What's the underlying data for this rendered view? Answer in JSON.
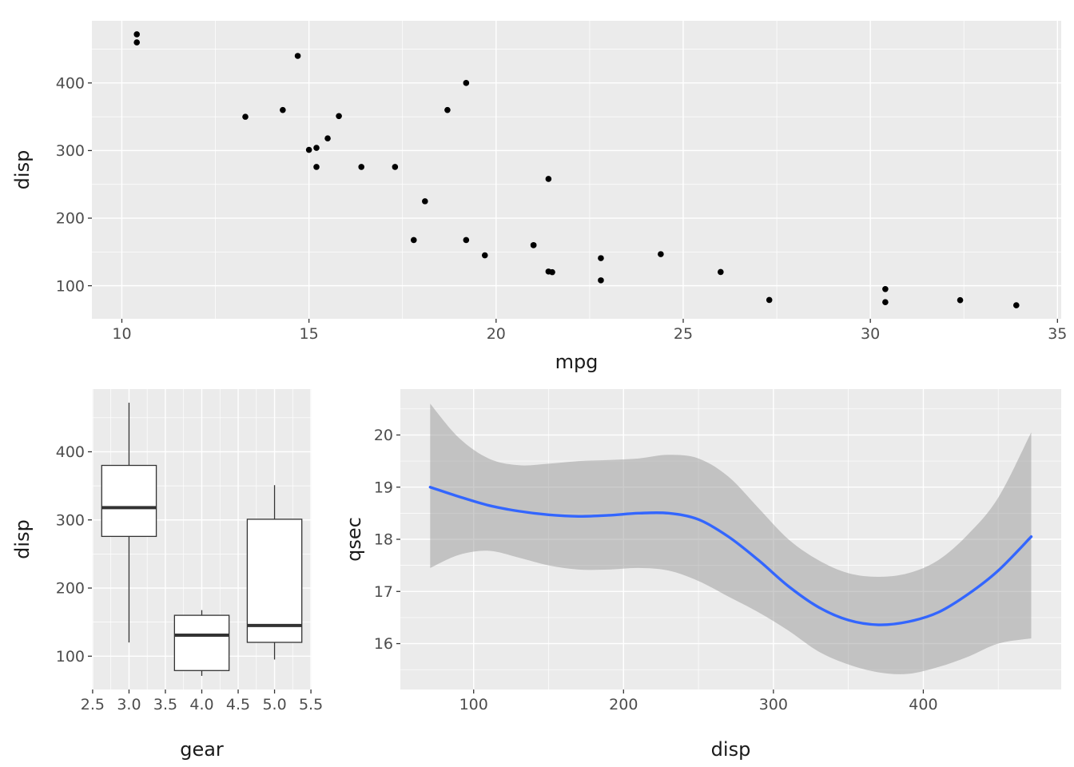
{
  "figure": {
    "background": "#FFFFFF",
    "panel_background": "#EBEBEB",
    "grid_color": "#FFFFFF",
    "axis_text_color": "#4D4D4D",
    "axis_title_color": "#1A1A1A",
    "tick_mark_color": "#333333"
  },
  "chart_data": [
    {
      "id": "scatter-disp-vs-mpg",
      "type": "scatter",
      "title": "",
      "xlabel": "mpg",
      "ylabel": "disp",
      "xlim": [
        9.2,
        35.1
      ],
      "ylim": [
        51.1,
        492.0
      ],
      "x_breaks": [
        10,
        15,
        20,
        25,
        30,
        35
      ],
      "x_labels": [
        "10",
        "15",
        "20",
        "25",
        "30",
        "35"
      ],
      "x_minor": [
        12.5,
        17.5,
        22.5,
        27.5,
        32.5
      ],
      "y_breaks": [
        100,
        200,
        300,
        400
      ],
      "y_labels": [
        "100",
        "200",
        "300",
        "400"
      ],
      "y_minor": [
        50,
        150,
        250,
        350,
        450
      ],
      "point_color": "#000000",
      "grid": true,
      "legend": "none",
      "points": [
        [
          21.0,
          160.0
        ],
        [
          21.0,
          160.0
        ],
        [
          22.8,
          108.0
        ],
        [
          21.4,
          258.0
        ],
        [
          18.7,
          360.0
        ],
        [
          18.1,
          225.0
        ],
        [
          14.3,
          360.0
        ],
        [
          24.4,
          146.7
        ],
        [
          22.8,
          140.8
        ],
        [
          19.2,
          167.6
        ],
        [
          17.8,
          167.6
        ],
        [
          16.4,
          275.8
        ],
        [
          17.3,
          275.8
        ],
        [
          15.2,
          275.8
        ],
        [
          10.4,
          472.0
        ],
        [
          10.4,
          460.0
        ],
        [
          14.7,
          440.0
        ],
        [
          32.4,
          78.7
        ],
        [
          30.4,
          75.7
        ],
        [
          33.9,
          71.1
        ],
        [
          21.5,
          120.1
        ],
        [
          15.5,
          318.0
        ],
        [
          15.2,
          304.0
        ],
        [
          13.3,
          350.0
        ],
        [
          19.2,
          400.0
        ],
        [
          27.3,
          79.0
        ],
        [
          26.0,
          120.3
        ],
        [
          30.4,
          95.1
        ],
        [
          15.8,
          351.0
        ],
        [
          19.7,
          145.0
        ],
        [
          15.0,
          301.0
        ],
        [
          21.4,
          121.0
        ]
      ]
    },
    {
      "id": "boxplot-disp-by-gear",
      "type": "boxplot",
      "title": "",
      "xlabel": "gear",
      "ylabel": "disp",
      "xlim": [
        2.49,
        5.51
      ],
      "ylim": [
        51.1,
        492.0
      ],
      "x_breaks": [
        2.5,
        3.0,
        3.5,
        4.0,
        4.5,
        5.0,
        5.5
      ],
      "x_labels": [
        "2.5",
        "3.0",
        "3.5",
        "4.0",
        "4.5",
        "5.0",
        "5.5"
      ],
      "x_minor": [
        2.75,
        3.25,
        3.75,
        4.25,
        4.75,
        5.25
      ],
      "y_breaks": [
        100,
        200,
        300,
        400
      ],
      "y_labels": [
        "100",
        "200",
        "300",
        "400"
      ],
      "y_minor": [
        50,
        150,
        250,
        350,
        450
      ],
      "box_fill": "#FFFFFF",
      "box_stroke": "#333333",
      "box_width": 0.75,
      "grid": true,
      "legend": "none",
      "boxes": [
        {
          "x": 3,
          "min": 120.1,
          "q1": 275.8,
          "median": 318.0,
          "q3": 380.0,
          "max": 472.0
        },
        {
          "x": 4,
          "min": 71.1,
          "q1": 78.9,
          "median": 130.9,
          "q3": 160.0,
          "max": 167.6
        },
        {
          "x": 5,
          "min": 95.1,
          "q1": 120.3,
          "median": 145.0,
          "q3": 301.0,
          "max": 351.0
        }
      ]
    },
    {
      "id": "smooth-qsec-vs-disp",
      "type": "smooth",
      "title": "",
      "xlabel": "disp",
      "ylabel": "qsec",
      "xlim": [
        51.1,
        492.0
      ],
      "ylim": [
        15.12,
        20.88
      ],
      "x_breaks": [
        100,
        200,
        300,
        400
      ],
      "x_labels": [
        "100",
        "200",
        "300",
        "400"
      ],
      "x_minor": [
        50,
        150,
        250,
        350,
        450
      ],
      "y_breaks": [
        16,
        17,
        18,
        19,
        20
      ],
      "y_labels": [
        "16",
        "17",
        "18",
        "19",
        "20"
      ],
      "y_minor": [
        15.5,
        16.5,
        17.5,
        18.5,
        19.5,
        20.5
      ],
      "line_color": "#3366FF",
      "ribbon_color": "#999999",
      "ribbon_opacity": 0.5,
      "grid": true,
      "legend": "none",
      "line": [
        [
          71,
          19.0
        ],
        [
          90,
          18.82
        ],
        [
          110,
          18.65
        ],
        [
          130,
          18.54
        ],
        [
          150,
          18.47
        ],
        [
          170,
          18.44
        ],
        [
          190,
          18.46
        ],
        [
          210,
          18.5
        ],
        [
          230,
          18.5
        ],
        [
          250,
          18.38
        ],
        [
          270,
          18.05
        ],
        [
          290,
          17.6
        ],
        [
          310,
          17.1
        ],
        [
          330,
          16.7
        ],
        [
          350,
          16.45
        ],
        [
          370,
          16.36
        ],
        [
          390,
          16.42
        ],
        [
          410,
          16.6
        ],
        [
          430,
          16.95
        ],
        [
          450,
          17.4
        ],
        [
          472,
          18.05
        ]
      ],
      "ribbon_upper": [
        [
          71,
          20.6
        ],
        [
          90,
          19.95
        ],
        [
          110,
          19.55
        ],
        [
          130,
          19.42
        ],
        [
          150,
          19.45
        ],
        [
          170,
          19.5
        ],
        [
          190,
          19.52
        ],
        [
          210,
          19.55
        ],
        [
          230,
          19.62
        ],
        [
          250,
          19.55
        ],
        [
          270,
          19.2
        ],
        [
          290,
          18.6
        ],
        [
          310,
          18.0
        ],
        [
          330,
          17.6
        ],
        [
          350,
          17.35
        ],
        [
          370,
          17.28
        ],
        [
          390,
          17.35
        ],
        [
          410,
          17.6
        ],
        [
          430,
          18.1
        ],
        [
          450,
          18.8
        ],
        [
          472,
          20.05
        ]
      ],
      "ribbon_lower": [
        [
          71,
          17.45
        ],
        [
          90,
          17.7
        ],
        [
          110,
          17.78
        ],
        [
          130,
          17.65
        ],
        [
          150,
          17.5
        ],
        [
          170,
          17.42
        ],
        [
          190,
          17.42
        ],
        [
          210,
          17.45
        ],
        [
          230,
          17.4
        ],
        [
          250,
          17.2
        ],
        [
          270,
          16.9
        ],
        [
          290,
          16.6
        ],
        [
          310,
          16.25
        ],
        [
          330,
          15.85
        ],
        [
          350,
          15.6
        ],
        [
          370,
          15.45
        ],
        [
          390,
          15.42
        ],
        [
          410,
          15.55
        ],
        [
          430,
          15.75
        ],
        [
          450,
          16.0
        ],
        [
          472,
          16.1
        ]
      ]
    }
  ]
}
